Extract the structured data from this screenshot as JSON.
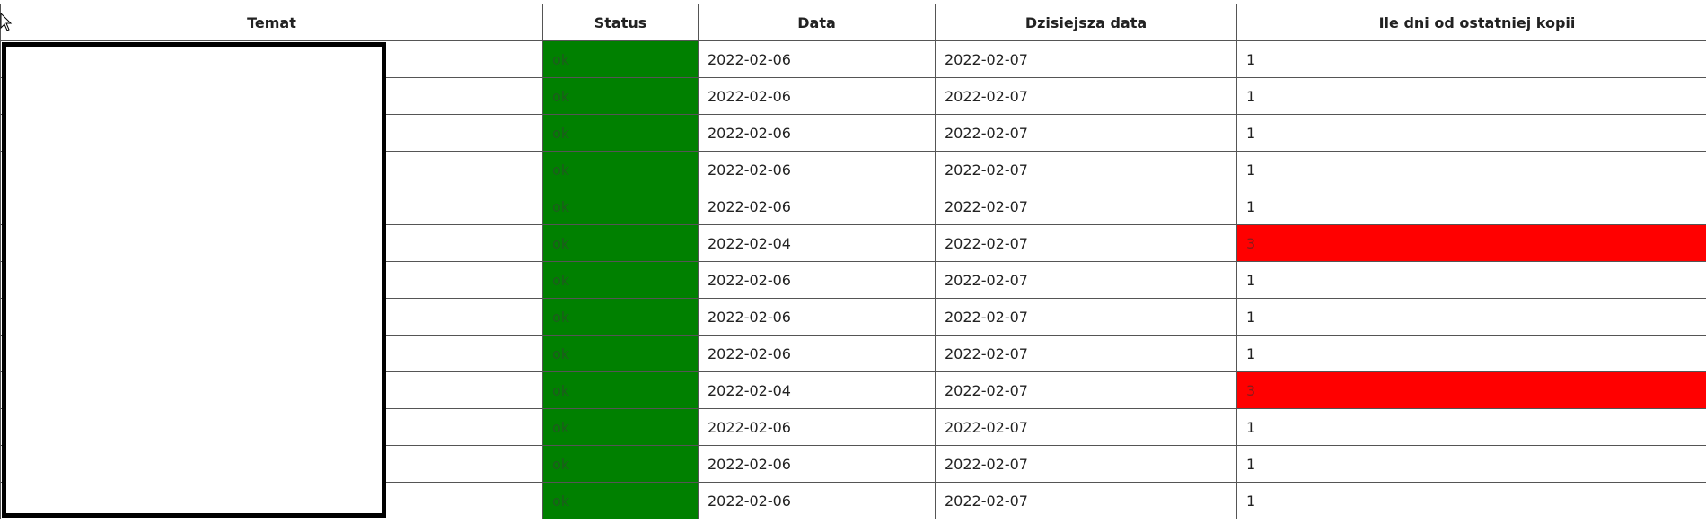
{
  "table": {
    "headers": {
      "temat": "Temat",
      "status": "Status",
      "data": "Data",
      "dzisiejsza_data": "Dzisiejsza data",
      "ile_dni": "Ile dni od ostatniej kopii"
    },
    "rows": [
      {
        "temat": "",
        "status": "ok",
        "data": "2022-02-06",
        "dzisiejsza_data": "2022-02-07",
        "ile_dni": "1"
      },
      {
        "temat": "",
        "status": "ok",
        "data": "2022-02-06",
        "dzisiejsza_data": "2022-02-07",
        "ile_dni": "1"
      },
      {
        "temat": "",
        "status": "ok",
        "data": "2022-02-06",
        "dzisiejsza_data": "2022-02-07",
        "ile_dni": "1"
      },
      {
        "temat": "",
        "status": "ok",
        "data": "2022-02-06",
        "dzisiejsza_data": "2022-02-07",
        "ile_dni": "1"
      },
      {
        "temat": "",
        "status": "ok",
        "data": "2022-02-06",
        "dzisiejsza_data": "2022-02-07",
        "ile_dni": "1"
      },
      {
        "temat": "",
        "status": "ok",
        "data": "2022-02-04",
        "dzisiejsza_data": "2022-02-07",
        "ile_dni": "3"
      },
      {
        "temat": "",
        "status": "ok",
        "data": "2022-02-06",
        "dzisiejsza_data": "2022-02-07",
        "ile_dni": "1"
      },
      {
        "temat": "",
        "status": "ok",
        "data": "2022-02-06",
        "dzisiejsza_data": "2022-02-07",
        "ile_dni": "1"
      },
      {
        "temat": "",
        "status": "ok",
        "data": "2022-02-06",
        "dzisiejsza_data": "2022-02-07",
        "ile_dni": "1"
      },
      {
        "temat": "",
        "status": "ok",
        "data": "2022-02-04",
        "dzisiejsza_data": "2022-02-07",
        "ile_dni": "3"
      },
      {
        "temat": "",
        "status": "ok",
        "data": "2022-02-06",
        "dzisiejsza_data": "2022-02-07",
        "ile_dni": "1"
      },
      {
        "temat": "",
        "status": "ok",
        "data": "2022-02-06",
        "dzisiejsza_data": "2022-02-07",
        "ile_dni": "1"
      },
      {
        "temat": "",
        "status": "ok",
        "data": "2022-02-06",
        "dzisiejsza_data": "2022-02-07",
        "ile_dni": "1"
      }
    ]
  },
  "colors": {
    "status_ok": "#008000",
    "days_alert": "#ff0000"
  },
  "icons": {
    "cursor": "mouse-pointer-icon"
  }
}
